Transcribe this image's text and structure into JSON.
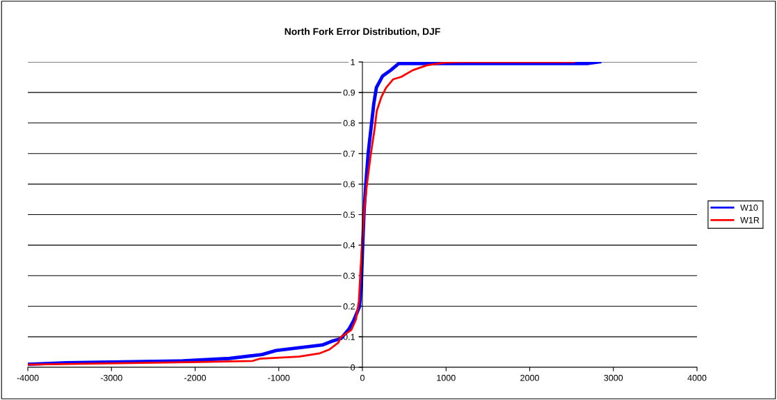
{
  "chart_data": {
    "type": "line",
    "title": "North Fork Error Distribution, DJF",
    "xlim": [
      -4000,
      4000
    ],
    "xticks": [
      -4000,
      -3000,
      -2000,
      -1000,
      0,
      1000,
      2000,
      3000,
      4000
    ],
    "ylim": [
      0,
      1
    ],
    "yticks": [
      0,
      0.1,
      0.2,
      0.3,
      0.4,
      0.5,
      0.6,
      0.7,
      0.8,
      0.9,
      1
    ],
    "grid": "y",
    "legend": "right",
    "marker": "none",
    "line_style": "solid",
    "series": [
      {
        "name": "W10",
        "color": "#0000ff",
        "x": [
          -4000,
          -3528,
          -2145,
          -1589,
          -1199,
          -1032,
          -757,
          -480,
          -369,
          -258,
          -161,
          -106,
          -36,
          -14,
          0,
          19,
          42,
          70,
          108,
          136,
          167,
          242,
          339,
          436,
          2700,
          2836
        ],
        "values": [
          0.01,
          0.015,
          0.021,
          0.029,
          0.042,
          0.055,
          0.064,
          0.073,
          0.085,
          0.094,
          0.125,
          0.152,
          0.198,
          0.262,
          0.376,
          0.506,
          0.605,
          0.703,
          0.795,
          0.863,
          0.916,
          0.954,
          0.973,
          0.995,
          0.995,
          1.0
        ]
      },
      {
        "name": "W1R",
        "color": "#ff0000",
        "x": [
          -4000,
          -2045,
          -1311,
          -1228,
          -757,
          -508,
          -397,
          -286,
          -259,
          -133,
          -78,
          -42,
          -22,
          0,
          19,
          53,
          103,
          145,
          172,
          228,
          284,
          367,
          464,
          603,
          770,
          992,
          1156,
          2528
        ],
        "values": [
          0.009,
          0.017,
          0.021,
          0.028,
          0.035,
          0.046,
          0.058,
          0.081,
          0.099,
          0.122,
          0.156,
          0.217,
          0.323,
          0.414,
          0.506,
          0.597,
          0.703,
          0.779,
          0.84,
          0.886,
          0.916,
          0.943,
          0.951,
          0.973,
          0.989,
          0.998,
          1.0,
          1.0
        ]
      }
    ]
  }
}
